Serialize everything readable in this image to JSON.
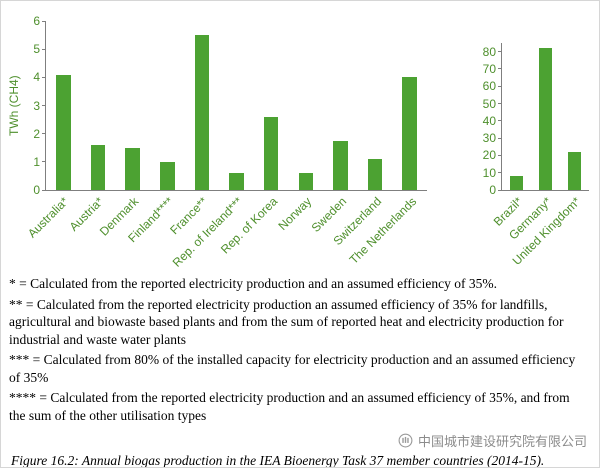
{
  "colors": {
    "bar_green": "#4CA232",
    "axis_text_green": "#4E8F2C",
    "axis_line_gray": "#7f7f7f",
    "watermark_gray": "#8C8C8C",
    "page_background": "#FFFFFF"
  },
  "chart_data": [
    {
      "type": "bar",
      "title": "",
      "ylabel": "TWh (CH4)",
      "xlabel": "",
      "ylim": [
        0,
        6
      ],
      "yticks": [
        0,
        1,
        2,
        3,
        4,
        5,
        6
      ],
      "grid": false,
      "legend": "none",
      "categories": [
        "Australia*",
        "Austria*",
        "Denmark",
        "Finland****",
        "France**",
        "Rep. of Ireland***",
        "Rep. of Korea",
        "Norway",
        "Sweden",
        "Switzerland",
        "The Netherlands"
      ],
      "values": [
        4.1,
        1.6,
        1.5,
        1.0,
        5.5,
        0.6,
        2.6,
        0.6,
        1.75,
        1.1,
        4.0
      ]
    },
    {
      "type": "bar",
      "title": "",
      "ylabel": "",
      "xlabel": "",
      "ylim": [
        0,
        85
      ],
      "yticks": [
        0,
        10,
        20,
        30,
        40,
        50,
        60,
        70,
        80
      ],
      "grid": false,
      "legend": "none",
      "categories": [
        "Brazil*",
        "Germany*",
        "United Kingdom*"
      ],
      "values": [
        8,
        82,
        22
      ]
    }
  ],
  "footnotes": [
    "* = Calculated from the reported electricity production and an assumed efficiency of 35%.",
    "** = Calculated from the reported electricity production an assumed efficiency of 35% for landfills, agricultural and biowaste based plants and from the sum of reported heat and electricity production for industrial and waste water plants",
    "*** = Calculated from 80% of the installed capacity for electricity production and an assumed efficiency of 35%",
    "**** = Calculated from the reported electricity production and an assumed efficiency of 35%, and from the sum of the other utilisation types"
  ],
  "watermark": {
    "company": "中国城市建设研究院有限公司"
  },
  "caption": "Figure 16.2: Annual biogas production in the IEA Bioenergy Task 37 member countries (2014-15)."
}
